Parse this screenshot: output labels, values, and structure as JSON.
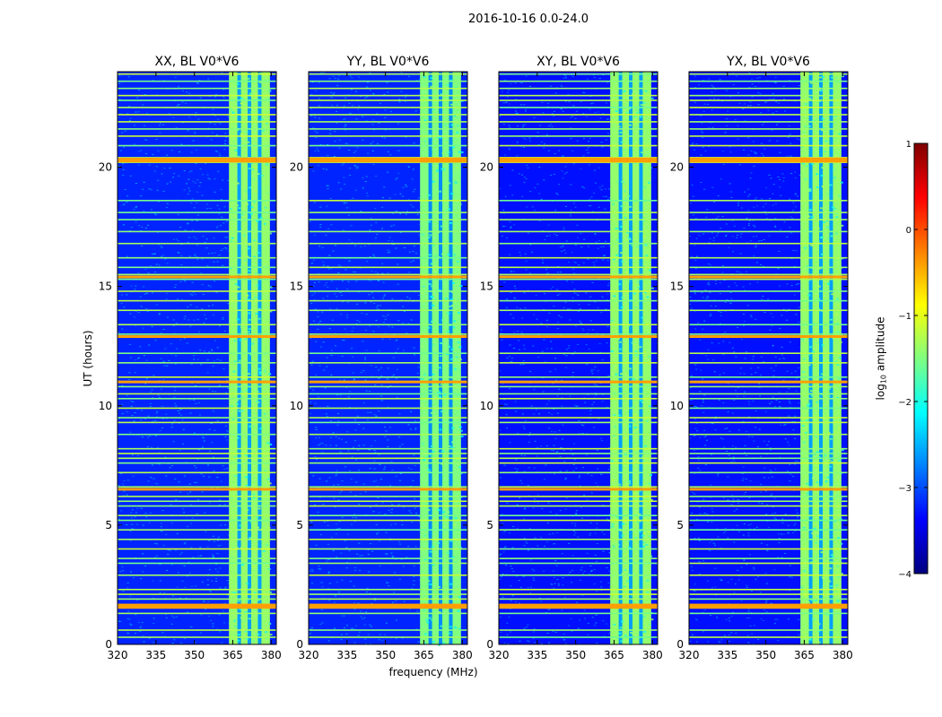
{
  "suptitle": "2016-10-16 0.0-24.0",
  "xlabel": "frequency (MHz)",
  "ylabel": "UT (hours)",
  "colorbar": {
    "label_prefix": "log",
    "label_sub": "10",
    "label_suffix": " amplitude",
    "ticks": [
      1,
      0,
      -1,
      -2,
      -3,
      -4
    ],
    "tick_labels": [
      "1",
      "0",
      "−1",
      "−2",
      "−3",
      "−4"
    ],
    "vmin": -4,
    "vmax": 1,
    "colormap": [
      "#00007f",
      "#0000ff",
      "#0080ff",
      "#00ffff",
      "#80ff80",
      "#ffff00",
      "#ff8000",
      "#ff0000",
      "#7f0000"
    ]
  },
  "chart_data": [
    {
      "type": "heatmap",
      "title": "XX, BL V0*V6",
      "xlim": [
        320,
        382
      ],
      "ylim": [
        0,
        24
      ],
      "xticks": [
        320,
        335,
        350,
        365,
        380
      ],
      "yticks": [
        0,
        5,
        10,
        15,
        20
      ],
      "band_MHz": [
        363.5,
        379.5
      ],
      "background_log10": -3.2,
      "band_log10": -1.4
    },
    {
      "type": "heatmap",
      "title": "YY, BL V0*V6",
      "xlim": [
        320,
        382
      ],
      "ylim": [
        0,
        24
      ],
      "xticks": [
        320,
        335,
        350,
        365,
        380
      ],
      "yticks": [
        0,
        5,
        10,
        15,
        20
      ],
      "band_MHz": [
        363.5,
        379.5
      ],
      "background_log10": -3.2,
      "band_log10": -1.5
    },
    {
      "type": "heatmap",
      "title": "XY, BL V0*V6",
      "xlim": [
        320,
        382
      ],
      "ylim": [
        0,
        24
      ],
      "xticks": [
        320,
        335,
        350,
        365,
        380
      ],
      "yticks": [
        0,
        5,
        10,
        15,
        20
      ],
      "band_MHz": [
        363.5,
        379.5
      ],
      "background_log10": -3.3,
      "band_log10": -1.4
    },
    {
      "type": "heatmap",
      "title": "YX, BL V0*V6",
      "xlim": [
        320,
        382
      ],
      "ylim": [
        0,
        24
      ],
      "xticks": [
        320,
        335,
        350,
        365,
        380
      ],
      "yticks": [
        0,
        5,
        10,
        15,
        20
      ],
      "band_MHz": [
        363.5,
        379.5
      ],
      "background_log10": -3.3,
      "band_log10": -1.4
    }
  ],
  "rfi_rows_UT": [
    0.3,
    0.6,
    1.3,
    1.55,
    1.65,
    1.9,
    2.1,
    2.3,
    2.9,
    3.4,
    3.6,
    4.0,
    4.4,
    4.8,
    5.2,
    5.4,
    5.8,
    6.0,
    6.2,
    6.5,
    6.6,
    7.2,
    7.6,
    7.8,
    8.0,
    8.2,
    8.8,
    9.3,
    9.5,
    9.9,
    10.3,
    10.5,
    10.8,
    11.0,
    11.2,
    11.8,
    12.2,
    12.9,
    13.0,
    13.4,
    14.0,
    14.4,
    14.8,
    15.3,
    15.5,
    15.8,
    16.2,
    16.8,
    17.3,
    17.8,
    18.1,
    18.6,
    20.2,
    20.3,
    20.4,
    20.9,
    21.3,
    21.6,
    21.9,
    22.2,
    22.5,
    22.8,
    23.0,
    23.3,
    23.6,
    23.9
  ],
  "hot_rows_UT": [
    1.55,
    1.65,
    20.25,
    20.35,
    12.9,
    15.4,
    6.5,
    11.0
  ]
}
